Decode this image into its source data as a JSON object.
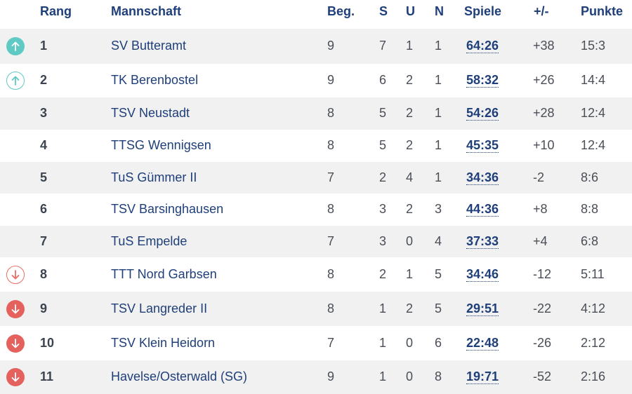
{
  "headers": {
    "rang": "Rang",
    "mannschaft": "Mannschaft",
    "beg": "Beg.",
    "s": "S",
    "u": "U",
    "n": "N",
    "spiele": "Spiele",
    "diff": "+/-",
    "punkte": "Punkte"
  },
  "colors": {
    "header_text": "#1f3f7a",
    "up_trend": "#5fc9c4",
    "down_trend": "#e4615d",
    "row_shade": "#f1f1f1"
  },
  "rows": [
    {
      "rank": "1",
      "team": "SV Butteramt",
      "beg": "9",
      "s": "7",
      "u": "1",
      "n": "1",
      "spiele": "64:26",
      "diff": "+38",
      "punkte": "15:3",
      "trend": "up-solid"
    },
    {
      "rank": "2",
      "team": "TK Berenbostel",
      "beg": "9",
      "s": "6",
      "u": "2",
      "n": "1",
      "spiele": "58:32",
      "diff": "+26",
      "punkte": "14:4",
      "trend": "up-outline"
    },
    {
      "rank": "3",
      "team": "TSV Neustadt",
      "beg": "8",
      "s": "5",
      "u": "2",
      "n": "1",
      "spiele": "54:26",
      "diff": "+28",
      "punkte": "12:4",
      "trend": "none"
    },
    {
      "rank": "4",
      "team": "TTSG Wennigsen",
      "beg": "8",
      "s": "5",
      "u": "2",
      "n": "1",
      "spiele": "45:35",
      "diff": "+10",
      "punkte": "12:4",
      "trend": "none"
    },
    {
      "rank": "5",
      "team": "TuS Gümmer II",
      "beg": "7",
      "s": "2",
      "u": "4",
      "n": "1",
      "spiele": "34:36",
      "diff": "-2",
      "punkte": "8:6",
      "trend": "none"
    },
    {
      "rank": "6",
      "team": "TSV Barsinghausen",
      "beg": "8",
      "s": "3",
      "u": "2",
      "n": "3",
      "spiele": "44:36",
      "diff": "+8",
      "punkte": "8:8",
      "trend": "none"
    },
    {
      "rank": "7",
      "team": "TuS Empelde",
      "beg": "7",
      "s": "3",
      "u": "0",
      "n": "4",
      "spiele": "37:33",
      "diff": "+4",
      "punkte": "6:8",
      "trend": "none"
    },
    {
      "rank": "8",
      "team": "TTT Nord Garbsen",
      "beg": "8",
      "s": "2",
      "u": "1",
      "n": "5",
      "spiele": "34:46",
      "diff": "-12",
      "punkte": "5:11",
      "trend": "down-outline"
    },
    {
      "rank": "9",
      "team": "TSV Langreder II",
      "beg": "8",
      "s": "1",
      "u": "2",
      "n": "5",
      "spiele": "29:51",
      "diff": "-22",
      "punkte": "4:12",
      "trend": "down-solid"
    },
    {
      "rank": "10",
      "team": "TSV Klein Heidorn",
      "beg": "7",
      "s": "1",
      "u": "0",
      "n": "6",
      "spiele": "22:48",
      "diff": "-26",
      "punkte": "2:12",
      "trend": "down-solid"
    },
    {
      "rank": "11",
      "team": "Havelse/Osterwald (SG)",
      "beg": "9",
      "s": "1",
      "u": "0",
      "n": "8",
      "spiele": "19:71",
      "diff": "-52",
      "punkte": "2:16",
      "trend": "down-solid"
    }
  ]
}
